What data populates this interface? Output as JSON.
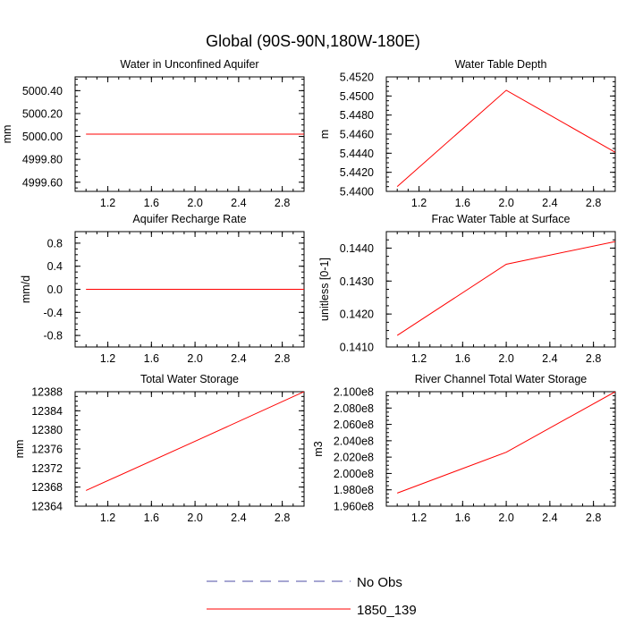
{
  "figure": {
    "title": "Global (90S-90N,180W-180E)"
  },
  "legend": {
    "entries": [
      {
        "label": "No Obs",
        "color": "#4d4da6",
        "dashed": true
      },
      {
        "label": "1850_139",
        "color": "#ff0000",
        "dashed": false
      }
    ]
  },
  "chart_data": [
    {
      "type": "line",
      "title": "Water in Unconfined Aquifer",
      "ylabel": "mm",
      "xlim": [
        0.9,
        3.0
      ],
      "ylim": [
        4999.52,
        5000.52
      ],
      "xticks": [
        "1.2",
        "1.6",
        "2.0",
        "2.4",
        "2.8"
      ],
      "xtick_values": [
        1.2,
        1.6,
        2.0,
        2.4,
        2.8
      ],
      "yticks": [
        "5000.40",
        "5000.20",
        "5000.00",
        "4999.80",
        "4999.60"
      ],
      "ytick_values": [
        5000.4,
        5000.2,
        5000.0,
        4999.8,
        4999.6
      ],
      "series": [
        {
          "name": "1850_139",
          "color": "#ff0000",
          "x": [
            1,
            2,
            3
          ],
          "y": [
            5000.02,
            5000.02,
            5000.02
          ]
        }
      ]
    },
    {
      "type": "line",
      "title": "Water Table Depth",
      "ylabel": "m",
      "xlim": [
        0.9,
        3.0
      ],
      "ylim": [
        5.44,
        5.452
      ],
      "xticks": [
        "1.2",
        "1.6",
        "2.0",
        "2.4",
        "2.8"
      ],
      "xtick_values": [
        1.2,
        1.6,
        2.0,
        2.4,
        2.8
      ],
      "yticks": [
        "5.4520",
        "5.4500",
        "5.4480",
        "5.4460",
        "5.4440",
        "5.4420",
        "5.4400"
      ],
      "ytick_values": [
        5.452,
        5.45,
        5.448,
        5.446,
        5.444,
        5.442,
        5.44
      ],
      "series": [
        {
          "name": "1850_139",
          "color": "#ff0000",
          "x": [
            1,
            2,
            3
          ],
          "y": [
            5.4405,
            5.4506,
            5.4441
          ]
        }
      ]
    },
    {
      "type": "line",
      "title": "Aquifer Recharge Rate",
      "ylabel": "mm/d",
      "xlim": [
        0.9,
        3.0
      ],
      "ylim": [
        -1.0,
        1.0
      ],
      "xticks": [
        "1.2",
        "1.6",
        "2.0",
        "2.4",
        "2.8"
      ],
      "xtick_values": [
        1.2,
        1.6,
        2.0,
        2.4,
        2.8
      ],
      "yticks": [
        "0.8",
        "0.4",
        "0.0",
        "-0.4",
        "-0.8"
      ],
      "ytick_values": [
        0.8,
        0.4,
        0.0,
        -0.4,
        -0.8
      ],
      "series": [
        {
          "name": "1850_139",
          "color": "#ff0000",
          "x": [
            1,
            2,
            3
          ],
          "y": [
            0.0,
            0.0,
            0.0
          ]
        }
      ]
    },
    {
      "type": "line",
      "title": "Frac Water Table at Surface",
      "ylabel": "unitless [0-1]",
      "xlim": [
        0.9,
        3.0
      ],
      "ylim": [
        0.141,
        0.1445
      ],
      "xticks": [
        "1.2",
        "1.6",
        "2.0",
        "2.4",
        "2.8"
      ],
      "xtick_values": [
        1.2,
        1.6,
        2.0,
        2.4,
        2.8
      ],
      "yticks": [
        "0.1440",
        "0.1430",
        "0.1420",
        "0.1410"
      ],
      "ytick_values": [
        0.144,
        0.143,
        0.142,
        0.141
      ],
      "series": [
        {
          "name": "1850_139",
          "color": "#ff0000",
          "x": [
            1,
            2,
            3
          ],
          "y": [
            0.14135,
            0.14351,
            0.1442
          ]
        }
      ]
    },
    {
      "type": "line",
      "title": "Total Water Storage",
      "ylabel": "mm",
      "xlim": [
        0.9,
        3.0
      ],
      "ylim": [
        12364,
        12388
      ],
      "xticks": [
        "1.2",
        "1.6",
        "2.0",
        "2.4",
        "2.8"
      ],
      "xtick_values": [
        1.2,
        1.6,
        2.0,
        2.4,
        2.8
      ],
      "yticks": [
        "12388",
        "12384",
        "12380",
        "12376",
        "12372",
        "12368",
        "12364"
      ],
      "ytick_values": [
        12388,
        12384,
        12380,
        12376,
        12372,
        12368,
        12364
      ],
      "series": [
        {
          "name": "1850_139",
          "color": "#ff0000",
          "x": [
            1,
            2,
            3
          ],
          "y": [
            12367.3,
            12377.6,
            12388.0
          ]
        }
      ]
    },
    {
      "type": "line",
      "title": "River Channel Total Water Storage",
      "ylabel": "m3",
      "xlim": [
        0.9,
        3.0
      ],
      "ylim": [
        196000000,
        210000000
      ],
      "xticks": [
        "1.2",
        "1.6",
        "2.0",
        "2.4",
        "2.8"
      ],
      "xtick_values": [
        1.2,
        1.6,
        2.0,
        2.4,
        2.8
      ],
      "yticks": [
        "2.100e8",
        "2.080e8",
        "2.060e8",
        "2.040e8",
        "2.020e8",
        "2.000e8",
        "1.980e8",
        "1.960e8"
      ],
      "ytick_values": [
        210000000,
        208000000,
        206000000,
        204000000,
        202000000,
        200000000,
        198000000,
        196000000
      ],
      "series": [
        {
          "name": "1850_139",
          "color": "#ff0000",
          "x": [
            1,
            2,
            3
          ],
          "y": [
            197600000,
            202600000,
            210000000
          ]
        }
      ]
    }
  ]
}
